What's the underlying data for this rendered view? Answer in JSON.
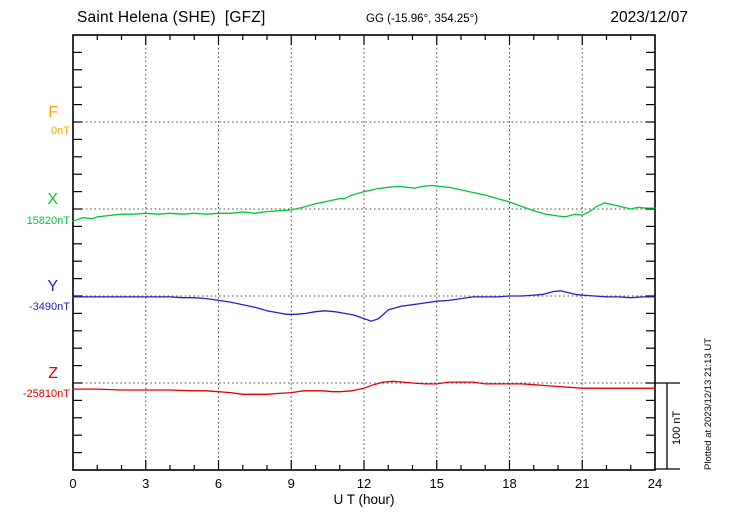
{
  "header": {
    "title": "Saint Helena (SHE)  [GFZ]",
    "coordinates": "GG (-15.96°, 354.25°)",
    "date": "2023/12/07"
  },
  "axes": {
    "x_label": "U T (hour)",
    "x_ticks": [
      0,
      3,
      6,
      9,
      12,
      15,
      18,
      21,
      24
    ],
    "x_minor_step_hours": 1,
    "x_range": [
      0,
      24
    ],
    "y_minor_tick_nT": 20,
    "y_division_nT": 100
  },
  "scale_bar": {
    "label": "100 nT",
    "nT": 100
  },
  "plotted_note": "Plotted at 2023/12/13 21:13 UT",
  "chart_data": {
    "type": "line",
    "title": "Saint Helena (SHE) [GFZ] magnetogram, 2023/12/07",
    "xlabel": "U T (hour)",
    "x_range": [
      0,
      24
    ],
    "grid": "dotted vertical lines every 3 h; dotted horizontal line at each component baseline",
    "scale_note": "100 nT per division; offsets are nT relative to each component baseline",
    "points_format": "[hour_UT, offset_nT_from_baseline]",
    "series": [
      {
        "name": "F",
        "baseline_label": "0nT",
        "baseline_nT": 0,
        "color": "#FFA500",
        "points": []
      },
      {
        "name": "X",
        "baseline_label": "15820nT",
        "baseline_nT": 15820,
        "color": "#00C832",
        "points": [
          [
            0,
            -14
          ],
          [
            0.4,
            -10
          ],
          [
            0.8,
            -11
          ],
          [
            1,
            -9
          ],
          [
            1.5,
            -7.5
          ],
          [
            2,
            -6
          ],
          [
            2.5,
            -6
          ],
          [
            3,
            -5
          ],
          [
            3.5,
            -6
          ],
          [
            4,
            -5
          ],
          [
            4.5,
            -6
          ],
          [
            5,
            -5
          ],
          [
            5.5,
            -6
          ],
          [
            6,
            -5
          ],
          [
            6.5,
            -5
          ],
          [
            7,
            -3.5
          ],
          [
            7.5,
            -5
          ],
          [
            8,
            -3
          ],
          [
            8.5,
            -2
          ],
          [
            9,
            -1
          ],
          [
            9.5,
            2
          ],
          [
            10,
            6
          ],
          [
            10.5,
            9
          ],
          [
            11,
            12
          ],
          [
            11.2,
            12
          ],
          [
            11.5,
            16
          ],
          [
            12,
            20
          ],
          [
            12.5,
            23
          ],
          [
            13,
            25
          ],
          [
            13.4,
            26
          ],
          [
            13.8,
            25
          ],
          [
            14.1,
            24
          ],
          [
            14.4,
            26
          ],
          [
            14.8,
            27
          ],
          [
            15.1,
            26
          ],
          [
            15.5,
            25
          ],
          [
            16,
            22
          ],
          [
            16.5,
            19
          ],
          [
            17,
            16
          ],
          [
            17.5,
            12
          ],
          [
            18,
            8
          ],
          [
            18.5,
            3
          ],
          [
            19,
            -2
          ],
          [
            19.5,
            -6
          ],
          [
            20,
            -8
          ],
          [
            20.3,
            -9
          ],
          [
            20.7,
            -6
          ],
          [
            21,
            -7
          ],
          [
            21.3,
            -3
          ],
          [
            21.6,
            3
          ],
          [
            21.9,
            7
          ],
          [
            22.1,
            6
          ],
          [
            22.4,
            4
          ],
          [
            22.7,
            2
          ],
          [
            23,
            0
          ],
          [
            23.3,
            2
          ],
          [
            23.6,
            1
          ],
          [
            24,
            1
          ]
        ]
      },
      {
        "name": "Y",
        "baseline_label": "-3490nT",
        "baseline_nT": -3490,
        "color": "#2222CC",
        "points": [
          [
            0,
            -1
          ],
          [
            0.5,
            -1
          ],
          [
            1,
            -1
          ],
          [
            1.5,
            -1
          ],
          [
            2,
            -1
          ],
          [
            2.5,
            -1
          ],
          [
            3,
            -1
          ],
          [
            3.5,
            -1
          ],
          [
            4,
            -1
          ],
          [
            4.5,
            -2
          ],
          [
            5,
            -2
          ],
          [
            5.5,
            -3
          ],
          [
            6,
            -5
          ],
          [
            6.5,
            -7
          ],
          [
            7,
            -10
          ],
          [
            7.5,
            -13
          ],
          [
            8,
            -17
          ],
          [
            8.4,
            -19
          ],
          [
            8.8,
            -21
          ],
          [
            9.2,
            -21
          ],
          [
            9.6,
            -20
          ],
          [
            10,
            -18
          ],
          [
            10.4,
            -17
          ],
          [
            10.8,
            -18
          ],
          [
            11.2,
            -20
          ],
          [
            11.6,
            -22
          ],
          [
            12,
            -26
          ],
          [
            12.3,
            -29
          ],
          [
            12.6,
            -26
          ],
          [
            13,
            -16
          ],
          [
            13.5,
            -12
          ],
          [
            14,
            -10
          ],
          [
            14.5,
            -8
          ],
          [
            15,
            -6
          ],
          [
            15.5,
            -5
          ],
          [
            16,
            -3
          ],
          [
            16.5,
            -1
          ],
          [
            17,
            -1
          ],
          [
            17.5,
            -1
          ],
          [
            18,
            0
          ],
          [
            18.5,
            0
          ],
          [
            19,
            1
          ],
          [
            19.4,
            2
          ],
          [
            19.8,
            5
          ],
          [
            20.1,
            6
          ],
          [
            20.4,
            4
          ],
          [
            20.7,
            2
          ],
          [
            21,
            1
          ],
          [
            21.5,
            0
          ],
          [
            22,
            -1
          ],
          [
            22.5,
            -1
          ],
          [
            23,
            -2
          ],
          [
            23.5,
            -1
          ],
          [
            24,
            -1
          ]
        ]
      },
      {
        "name": "Z",
        "baseline_label": "-25810nT",
        "baseline_nT": -25810,
        "color": "#E80000",
        "points": [
          [
            0,
            -7
          ],
          [
            1,
            -7
          ],
          [
            2,
            -8
          ],
          [
            3,
            -8
          ],
          [
            4,
            -8
          ],
          [
            5,
            -9
          ],
          [
            5.5,
            -9
          ],
          [
            6,
            -10
          ],
          [
            6.5,
            -11
          ],
          [
            7,
            -13
          ],
          [
            7.5,
            -13
          ],
          [
            8,
            -13
          ],
          [
            8.5,
            -12
          ],
          [
            9,
            -11
          ],
          [
            9.5,
            -9
          ],
          [
            10,
            -9
          ],
          [
            10.3,
            -9
          ],
          [
            10.7,
            -10
          ],
          [
            11,
            -10
          ],
          [
            11.5,
            -9
          ],
          [
            12,
            -6
          ],
          [
            12.4,
            -2
          ],
          [
            12.8,
            1
          ],
          [
            13.2,
            2
          ],
          [
            13.6,
            1
          ],
          [
            14,
            0
          ],
          [
            14.5,
            -1
          ],
          [
            15,
            -1
          ],
          [
            15.5,
            1
          ],
          [
            16,
            1
          ],
          [
            16.5,
            1
          ],
          [
            17,
            -1
          ],
          [
            17.5,
            -1
          ],
          [
            18,
            -1
          ],
          [
            18.5,
            -1
          ],
          [
            19,
            -2
          ],
          [
            19.5,
            -3
          ],
          [
            20,
            -4
          ],
          [
            20.5,
            -5
          ],
          [
            21,
            -6
          ],
          [
            21.5,
            -6
          ],
          [
            22,
            -6
          ],
          [
            22.5,
            -6
          ],
          [
            23,
            -6
          ],
          [
            23.5,
            -6
          ],
          [
            24,
            -6
          ]
        ]
      }
    ]
  }
}
